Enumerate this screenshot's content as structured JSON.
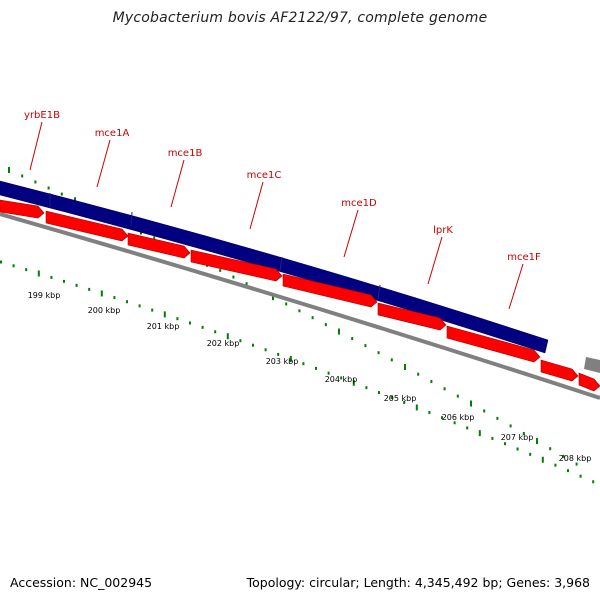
{
  "title": "Mycobacterium bovis AF2122/97, complete genome",
  "footer": {
    "accession": "Accession: NC_002945",
    "summary": "Topology: circular; Length: 4,345,492 bp; Genes: 3,968"
  },
  "colors": {
    "label": "#cc0000",
    "forward_gene": "#000080",
    "reverse_gene": "#ff0000",
    "other_gene": "#808080",
    "backbone": "#808080",
    "tick": "#008000"
  },
  "gene_labels": [
    "yrbE1B",
    "mce1A",
    "mce1B",
    "mce1C",
    "mce1D",
    "lprK",
    "mce1F"
  ],
  "scale_labels": [
    "199 kbp",
    "200 kbp",
    "201 kbp",
    "202 kbp",
    "203 kbp",
    "204 kbp",
    "205 kbp",
    "206 kbp",
    "207 kbp",
    "208 kbp"
  ]
}
